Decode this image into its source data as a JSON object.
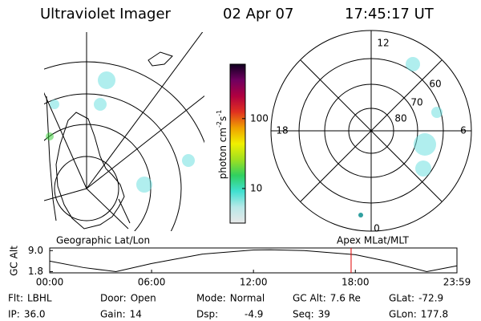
{
  "header": {
    "title": "Ultraviolet Imager",
    "date": "02 Apr 07",
    "time": "17:45:17 UT"
  },
  "colorbar": {
    "label": {
      "text": "photon cm",
      "sup1": "-2",
      "mid": "s",
      "sup2": "-1"
    },
    "log": true,
    "lim": [
      3.2,
      600
    ],
    "ticks": [
      10,
      100
    ],
    "colors": [
      "#e8e8e8",
      "#b8e8e8",
      "#40e0d0",
      "#30d060",
      "#a0e020",
      "#f0f000",
      "#f0a000",
      "#e03020",
      "#b00040",
      "#700060",
      "#100020"
    ]
  },
  "map_label": "Geographic Lat/Lon",
  "polar": {
    "label": "Apex MLat/MLT",
    "mlt_labels": [
      "12",
      "18",
      "6",
      "0"
    ],
    "lat_labels": [
      "60",
      "70",
      "80"
    ]
  },
  "gc_alt_plot": {
    "ylabel": "GC Alt",
    "yticks": [
      {
        "value": 9.0,
        "label": "9.0"
      },
      {
        "value": 1.8,
        "label": "1.8"
      }
    ],
    "ylim": [
      1.4,
      9.9
    ],
    "xlim": [
      0,
      23.9833
    ],
    "xticks": [
      {
        "value": 0,
        "label": "00:00"
      },
      {
        "value": 6,
        "label": "06:00"
      },
      {
        "value": 12,
        "label": "12:00"
      },
      {
        "value": 18,
        "label": "18:00"
      },
      {
        "value": 23.9833,
        "label": "23:59"
      }
    ],
    "x": [
      0,
      2,
      3.9,
      6,
      9,
      12,
      13,
      15,
      18,
      20,
      22.2,
      23.9833
    ],
    "values": [
      5.4,
      3.2,
      1.8,
      4.6,
      7.8,
      9.2,
      9.3,
      9.0,
      7.6,
      5.2,
      1.8,
      3.8
    ],
    "line_color": "#000000",
    "marker_hours": 17.75,
    "marker_color": "#e00000"
  },
  "info": [
    [
      {
        "label": "Flt:",
        "value": "LBHL"
      },
      {
        "label": "Door:",
        "value": "Open"
      },
      {
        "label": "Mode:",
        "value": "Normal"
      },
      {
        "label": "GC Alt:",
        "value": "7.6 Re"
      },
      {
        "label": "GLat:",
        "value": "-72.9"
      }
    ],
    [
      {
        "label": "IP:",
        "value": "36.0"
      },
      {
        "label": "Gain:",
        "value": "14"
      },
      {
        "label": "Dsp:",
        "value": "-4.9"
      },
      {
        "label": "Seq:",
        "value": "39"
      },
      {
        "label": "GLon:",
        "value": "177.8"
      }
    ]
  ]
}
